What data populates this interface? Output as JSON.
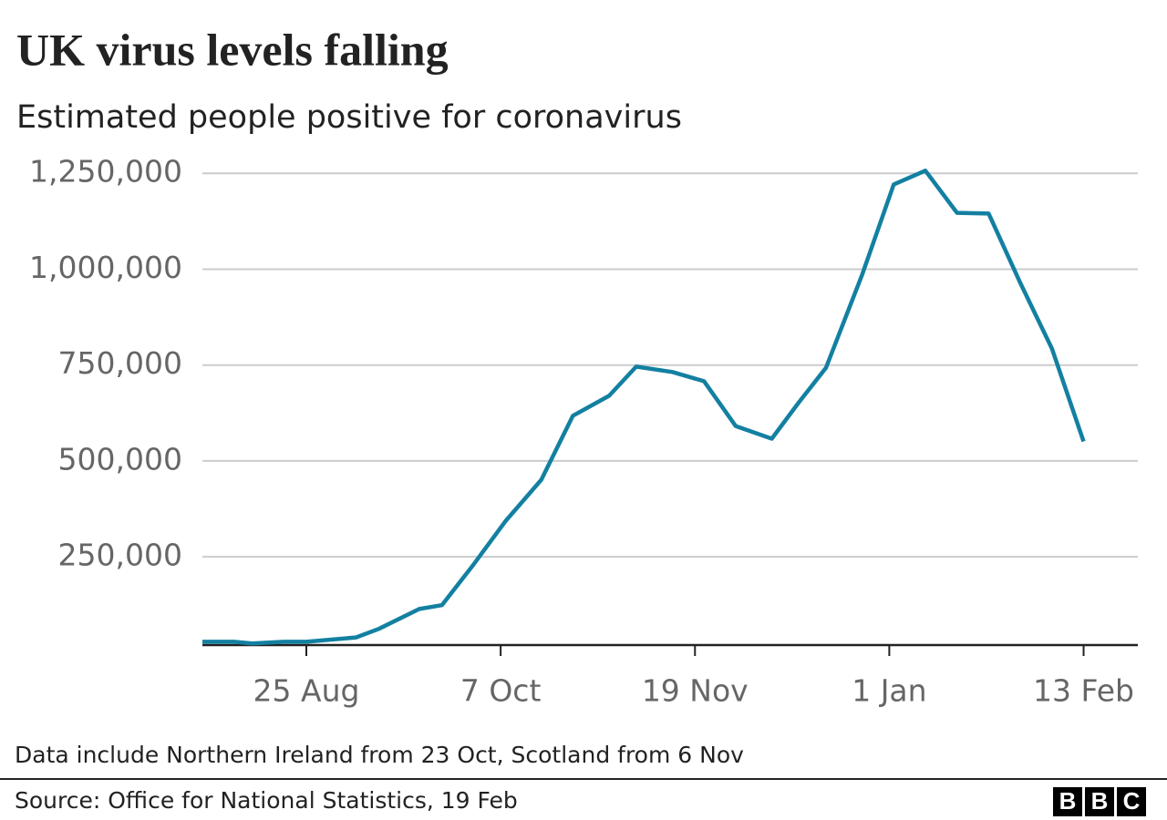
{
  "chart_data": {
    "type": "line",
    "title": "UK virus levels falling",
    "subtitle": "Estimated people positive for coronavirus",
    "x": [
      "2 Aug",
      "9 Aug",
      "13 Aug",
      "20 Aug",
      "25 Aug",
      "5 Sep",
      "10 Sep",
      "19 Sep",
      "24 Sep",
      "1 Oct",
      "8 Oct",
      "16 Oct",
      "23 Oct",
      "31 Oct",
      "6 Nov",
      "14 Nov",
      "21 Nov",
      "28 Nov",
      "6 Dec",
      "12 Dec",
      "18 Dec",
      "26 Dec",
      "2 Jan",
      "9 Jan",
      "16 Jan",
      "23 Jan",
      "30 Jan",
      "6 Feb",
      "13 Feb"
    ],
    "series": [
      {
        "name": "Estimated people positive for coronavirus",
        "color": "#1380a1",
        "values": [
          28500,
          28500,
          24000,
          28500,
          28500,
          40000,
          62000,
          114000,
          124000,
          230000,
          342000,
          451000,
          618000,
          670000,
          746000,
          732000,
          708000,
          591000,
          558000,
          653000,
          743000,
          986000,
          1221000,
          1257000,
          1147000,
          1145000,
          964000,
          793000,
          551000
        ]
      }
    ],
    "xlim": [
      "2 Aug",
      "25 Feb"
    ],
    "xticks": [
      "25 Aug",
      "7 Oct",
      "19 Nov",
      "1 Jan",
      "13 Feb"
    ],
    "ylim": [
      20000,
      1260000
    ],
    "yticks": [
      {
        "value": 250000,
        "label": "250,000"
      },
      {
        "value": 500000,
        "label": "500,000"
      },
      {
        "value": 750000,
        "label": "750,000"
      },
      {
        "value": 1000000,
        "label": "1,000,000"
      },
      {
        "value": 1250000,
        "label": "1,250,000"
      }
    ],
    "grid": true,
    "note": "Data include Northern Ireland from 23 Oct, Scotland from 6 Nov",
    "source": "Source: Office for National Statistics, 19 Feb",
    "logo": [
      "B",
      "B",
      "C"
    ]
  }
}
